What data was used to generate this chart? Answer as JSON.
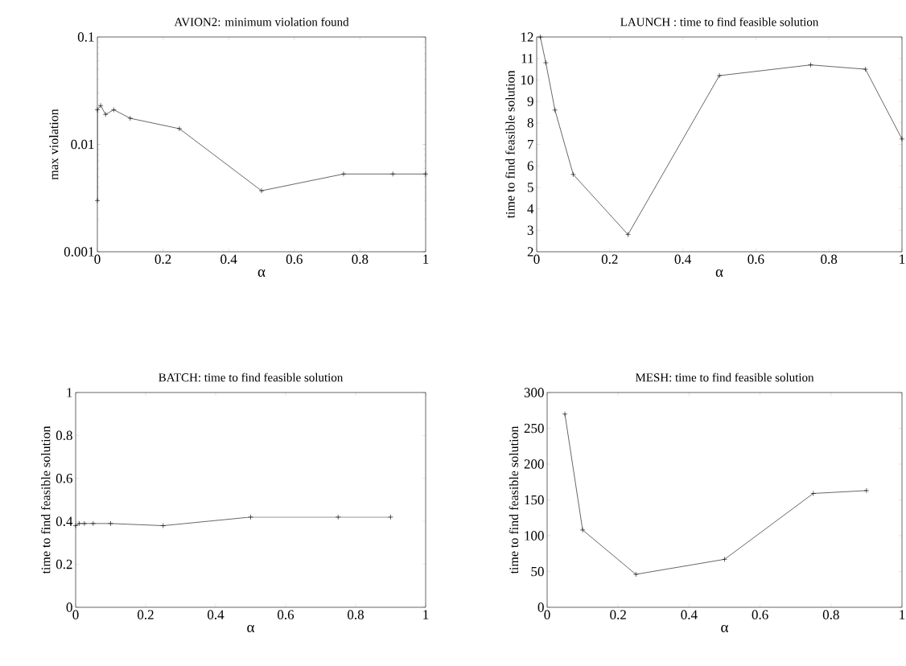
{
  "chart_data": [
    {
      "type": "line",
      "title": "AVION2: minimum violation found",
      "xlabel": "α",
      "ylabel": "max violation",
      "log": "y",
      "marker": "cross",
      "line_style": "solid",
      "color": "#000000",
      "x": [
        0,
        0,
        0.01,
        0.025,
        0.05,
        0.1,
        0.25,
        0.5,
        0.75,
        0.9,
        1
      ],
      "values": [
        0.003,
        0.021,
        0.023,
        0.019,
        0.021,
        0.0175,
        0.014,
        0.0037,
        0.0053,
        0.0053,
        0.0053
      ],
      "xlim": [
        0,
        1
      ],
      "ylim": [
        0.001,
        0.1
      ],
      "xticks": [
        0,
        0.2,
        0.4,
        0.6,
        0.8,
        1
      ],
      "yticks": [
        0.001,
        0.01,
        0.1
      ]
    },
    {
      "type": "line",
      "title": "LAUNCH : time to find feasible solution",
      "xlabel": "α",
      "ylabel": "time to find feasible solution",
      "marker": "cross",
      "line_style": "solid",
      "color": "#000000",
      "x": [
        0.01,
        0.025,
        0.05,
        0.1,
        0.25,
        0.5,
        0.75,
        0.9,
        1
      ],
      "values": [
        12,
        10.8,
        8.6,
        5.6,
        2.8,
        10.2,
        10.7,
        10.5,
        7.25
      ],
      "xlim": [
        0,
        1
      ],
      "ylim": [
        2,
        12
      ],
      "xticks": [
        0,
        0.2,
        0.4,
        0.6,
        0.8,
        1
      ],
      "yticks": [
        2,
        3,
        4,
        5,
        6,
        7,
        8,
        9,
        10,
        11,
        12
      ]
    },
    {
      "type": "line",
      "title": "BATCH: time to find feasible solution",
      "xlabel": "α",
      "ylabel": "time to find feasible solution",
      "marker": "cross",
      "line_style": "solid",
      "color": "#000000",
      "x": [
        0,
        0.01,
        0.025,
        0.05,
        0.1,
        0.25,
        0.5,
        0.75,
        0.9
      ],
      "values": [
        0.38,
        0.39,
        0.39,
        0.39,
        0.39,
        0.38,
        0.42,
        0.42,
        0.42
      ],
      "xlim": [
        0,
        1
      ],
      "ylim": [
        0,
        1
      ],
      "xticks": [
        0,
        0.2,
        0.4,
        0.6,
        0.8,
        1
      ],
      "yticks": [
        0,
        0.2,
        0.4,
        0.6,
        0.8,
        1
      ]
    },
    {
      "type": "line",
      "title": "MESH: time to find feasible solution",
      "xlabel": "α",
      "ylabel": "time to find feasible solution",
      "marker": "cross",
      "line_style": "solid",
      "color": "#000000",
      "x": [
        0.05,
        0.1,
        0.25,
        0.5,
        0.75,
        0.9
      ],
      "values": [
        270,
        108,
        46,
        67,
        159,
        163
      ],
      "xlim": [
        0,
        1
      ],
      "ylim": [
        0,
        300
      ],
      "xticks": [
        0,
        0.2,
        0.4,
        0.6,
        0.8,
        1
      ],
      "yticks": [
        0,
        50,
        100,
        150,
        200,
        250,
        300
      ]
    }
  ]
}
